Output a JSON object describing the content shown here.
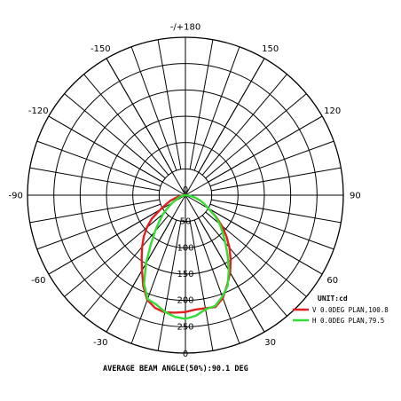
{
  "chart_data": {
    "type": "polar",
    "angle_zero_label": "0",
    "angle_top_label": "-/+180",
    "angle_labels": [
      {
        "angle": -150,
        "text": "-150"
      },
      {
        "angle": -120,
        "text": "-120"
      },
      {
        "angle": -90,
        "text": "-90"
      },
      {
        "angle": -60,
        "text": "-60"
      },
      {
        "angle": -30,
        "text": "-30"
      },
      {
        "angle": 30,
        "text": "30"
      },
      {
        "angle": 60,
        "text": "60"
      },
      {
        "angle": 90,
        "text": "90"
      },
      {
        "angle": 120,
        "text": "120"
      },
      {
        "angle": 150,
        "text": "150"
      }
    ],
    "radial_ticks": [
      0,
      50,
      100,
      150,
      200,
      250
    ],
    "radial_max": 300,
    "angle_step": 10,
    "legend": {
      "title": "UNIT:cd",
      "position": "right"
    },
    "footer": "AVERAGE BEAM ANGLE(50%):90.1 DEG",
    "series": [
      {
        "name": "V 0.0DEG PLAN,100.8",
        "color": "#e02020",
        "angles": [
          -90,
          -85,
          -80,
          -75,
          -70,
          -65,
          -60,
          -55,
          -50,
          -45,
          -40,
          -35,
          -30,
          -25,
          -20,
          -15,
          -10,
          -5,
          0,
          5,
          10,
          15,
          20,
          25,
          30,
          35,
          40,
          45,
          50,
          55,
          60
        ],
        "values": [
          0,
          5,
          10,
          18,
          30,
          40,
          55,
          78,
          96,
          112,
          128,
          145,
          165,
          190,
          212,
          222,
          226,
          224,
          222,
          218,
          218,
          220,
          208,
          188,
          170,
          150,
          130,
          110,
          90,
          70,
          50
        ]
      },
      {
        "name": "H 0.0DEG PLAN,79.5",
        "color": "#33dd33",
        "angles": [
          -90,
          -85,
          -80,
          -75,
          -70,
          -65,
          -60,
          -55,
          -50,
          -45,
          -40,
          -35,
          -30,
          -25,
          -20,
          -15,
          -10,
          -5,
          0,
          5,
          10,
          15,
          20,
          25,
          30,
          35,
          40,
          45,
          50,
          55,
          60,
          65,
          70,
          75,
          80,
          85,
          90
        ],
        "values": [
          0,
          3,
          5,
          8,
          12,
          18,
          28,
          40,
          55,
          70,
          90,
          115,
          150,
          186,
          210,
          215,
          225,
          232,
          235,
          230,
          220,
          218,
          205,
          190,
          165,
          140,
          118,
          100,
          85,
          68,
          50,
          40,
          30,
          20,
          12,
          5,
          0
        ]
      }
    ]
  }
}
